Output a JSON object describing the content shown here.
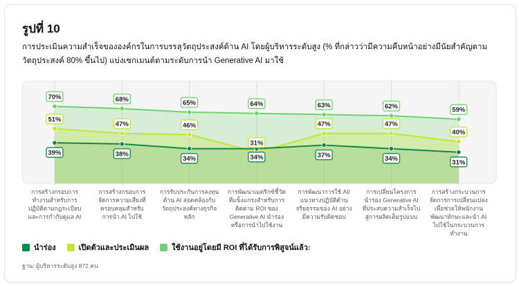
{
  "figure_label": "รูปที่ 10",
  "description": "การประเมินความสำเร็จขององค์กรในการบรรลุวัตถุประสงค์ด้าน AI โดยผู้บริหารระดับสูง (% ที่กล่าวว่ามีความคืบหน้าอย่างมีนัยสำคัญตามวัตถุประสงค์ 80% ขึ้นไป) แบ่งเซกเมนต์ตามระดับการนำ Generative AI มาใช้",
  "base_note": "ฐาน: ผู้บริหารระดับสูง 872 คน",
  "colors": {
    "pilot": "#13854e",
    "scaling": "#c4e634",
    "roi": "#6ed36f",
    "plot_bg": "#f4f5f4",
    "grid": "#dcdcdc"
  },
  "chart_data": {
    "type": "line",
    "categories": [
      "การสร้างกรอบการทำงานสำหรับการปฏิบัติตามกฎระเบียบและการกำกับดูแล AI",
      "การสร้างกรอบการจัดการความเสี่ยงที่ครอบคลุมสำหรับการนำ AI ไปใช้",
      "การรับประกันการลงทุนด้าน AI สอดคล้องกับวัตถุประสงค์ทางธุรกิจหลัก",
      "การพัฒนาเมตริกซ์ชี้วัดที่แข็งแกร่งสำหรับการติดตาม ROI ของ Generative AI นำร่องหรือการนำไปใช้งาน",
      "การพัฒนาการใช้ AI/แนวทางปฏิบัติด้านจริยธรรมของ AI อย่างมีความรับผิดชอบ",
      "การเปลี่ยนโครงการนำร่อง Generative AI ที่ประสบความสำเร็จไปสู่การผลิตเต็มรูปแบบ",
      "การสร้างกระบวนการจัดการการเปลี่ยนแปลงเพื่อช่วยให้พนักงานพัฒนาทักษะและนำ AI ไปใช้ในกระบวนการทำงาน"
    ],
    "series": [
      {
        "name": "นำร่อง",
        "key": "pilot",
        "values": [
          39,
          38,
          34,
          34,
          37,
          34,
          31
        ]
      },
      {
        "name": "เปิดตัวและประเมินผล",
        "key": "scaling",
        "values": [
          51,
          47,
          46,
          31,
          47,
          47,
          40
        ]
      },
      {
        "name": "ใช้งานอยู่โดยมี ROI ที่ได้รับการพิสูจน์แล้ว:",
        "key": "roi",
        "values": [
          70,
          68,
          65,
          64,
          63,
          62,
          59
        ]
      }
    ],
    "value_suffix": "%",
    "ylim": [
      15,
      85
    ],
    "grid": true,
    "legend_position": "bottom-left"
  }
}
